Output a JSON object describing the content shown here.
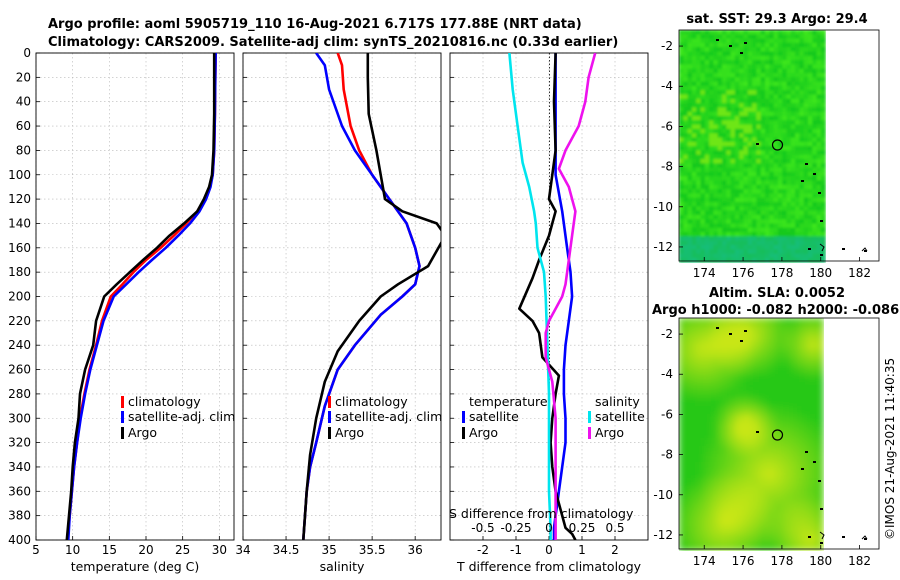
{
  "header": {
    "title_line1": "Argo profile: aoml 5905719_110 16-Aug-2021 6.717S 177.88E (NRT data)",
    "title_line2": "Climatology: CARS2009. Satellite-adj clim: synTS_20210816.nc (0.33d earlier)"
  },
  "colors": {
    "climatology": "#ff0000",
    "satellite": "#0000ff",
    "argo": "#000000",
    "sal_satellite": "#00e5ee",
    "sal_argo": "#ee11ee"
  },
  "chart_data": [
    {
      "type": "line",
      "name": "temperature-profile",
      "xlabel": "temperature (deg C)",
      "xlim": [
        5,
        32
      ],
      "xticks": [
        5,
        10,
        15,
        20,
        25,
        30
      ],
      "ylim": [
        0,
        400
      ],
      "yticks": [
        0,
        20,
        40,
        60,
        80,
        100,
        120,
        140,
        160,
        180,
        200,
        220,
        240,
        260,
        280,
        300,
        320,
        340,
        360,
        380,
        400
      ],
      "grid": true,
      "legend": [
        "climatology",
        "satellite-adj. clim",
        "Argo"
      ],
      "legend_placement": "lower-right",
      "series": [
        {
          "name": "climatology",
          "color": "#ff0000",
          "x": [
            29.5,
            29.45,
            29.4,
            29.3,
            29.1,
            28.7,
            28.0,
            27.0,
            25.5,
            23.8,
            22.0,
            20.0,
            18.3,
            16.8,
            15.2,
            14.0,
            13.2,
            12.3,
            11.6,
            11.0,
            10.6,
            10.2,
            9.9,
            9.6,
            9.3
          ],
          "depth": [
            0,
            20,
            50,
            80,
            100,
            110,
            120,
            130,
            140,
            150,
            160,
            170,
            180,
            190,
            200,
            220,
            240,
            260,
            280,
            300,
            320,
            340,
            360,
            380,
            400
          ]
        },
        {
          "name": "satellite-adj. clim",
          "color": "#0000ff",
          "x": [
            29.5,
            29.45,
            29.4,
            29.3,
            29.1,
            28.8,
            28.2,
            27.3,
            26.0,
            24.4,
            22.7,
            20.8,
            19.0,
            17.3,
            15.6,
            14.2,
            13.3,
            12.4,
            11.7,
            11.1,
            10.6,
            10.2,
            9.9,
            9.6,
            9.4
          ],
          "depth": [
            0,
            20,
            50,
            80,
            100,
            110,
            120,
            130,
            140,
            150,
            160,
            170,
            180,
            190,
            200,
            220,
            240,
            260,
            280,
            300,
            320,
            340,
            360,
            380,
            400
          ]
        },
        {
          "name": "Argo",
          "color": "#000000",
          "x": [
            29.3,
            29.3,
            29.3,
            29.2,
            29.0,
            28.6,
            27.9,
            27.0,
            25.2,
            23.2,
            21.5,
            19.6,
            17.8,
            16.0,
            14.3,
            13.2,
            12.8,
            11.7,
            11.0,
            10.8,
            10.3,
            10.0,
            9.8,
            9.5,
            9.2
          ],
          "depth": [
            0,
            20,
            50,
            80,
            100,
            110,
            120,
            130,
            140,
            150,
            160,
            170,
            180,
            190,
            200,
            220,
            240,
            260,
            280,
            300,
            320,
            340,
            360,
            380,
            400
          ]
        }
      ]
    },
    {
      "type": "line",
      "name": "salinity-profile",
      "xlabel": "salinity",
      "xlim": [
        34.0,
        36.3
      ],
      "xticks": [
        34,
        34.5,
        35,
        35.5,
        36
      ],
      "xtick_labels": [
        "34",
        "34.5",
        "35",
        "35.5",
        "36"
      ],
      "ylim": [
        0,
        400
      ],
      "grid": true,
      "legend": [
        "climatology",
        "satellite-adj. clim",
        "Argo"
      ],
      "legend_placement": "lower-right",
      "series": [
        {
          "name": "climatology",
          "color": "#ff0000",
          "x": [
            35.1,
            35.15,
            35.17,
            35.25,
            35.35,
            35.5,
            35.7,
            35.9,
            36.0,
            36.05,
            36.0,
            35.85,
            35.6,
            35.3,
            35.1,
            34.95,
            34.85,
            34.78,
            34.74,
            34.72,
            34.7
          ],
          "depth": [
            0,
            10,
            30,
            60,
            80,
            100,
            120,
            140,
            160,
            175,
            190,
            200,
            215,
            240,
            260,
            290,
            320,
            340,
            360,
            380,
            400
          ]
        },
        {
          "name": "satellite-adj. clim",
          "color": "#0000ff",
          "x": [
            34.85,
            34.95,
            35.0,
            35.15,
            35.3,
            35.5,
            35.7,
            35.9,
            36.0,
            36.05,
            36.0,
            35.85,
            35.6,
            35.3,
            35.1,
            34.95,
            34.85,
            34.78,
            34.74,
            34.72,
            34.7
          ],
          "depth": [
            0,
            10,
            30,
            60,
            80,
            100,
            120,
            140,
            160,
            175,
            190,
            200,
            215,
            240,
            260,
            290,
            320,
            340,
            360,
            380,
            400
          ]
        },
        {
          "name": "Argo",
          "color": "#000000",
          "x": [
            35.45,
            35.45,
            35.46,
            35.55,
            35.6,
            35.65,
            35.85,
            36.25,
            36.35,
            36.15,
            35.8,
            35.6,
            35.35,
            35.1,
            34.95,
            34.85,
            34.78,
            34.74,
            34.72,
            34.7
          ],
          "depth": [
            0,
            20,
            50,
            80,
            100,
            120,
            130,
            140,
            150,
            175,
            190,
            200,
            220,
            245,
            270,
            300,
            330,
            360,
            380,
            400
          ]
        }
      ]
    },
    {
      "type": "line",
      "name": "difference-profile",
      "xlabel": "T difference from climatology",
      "xlabel_top": "S difference from climatology",
      "xlim": [
        -3,
        3
      ],
      "xticks": [
        -2,
        -1,
        0,
        1,
        2
      ],
      "s_xticks_labels": [
        "-0.5",
        "-0.25",
        "0",
        "0.25",
        "0.5"
      ],
      "ylim": [
        0,
        400
      ],
      "grid": true,
      "legend_temperature": {
        "title": "temperature",
        "entries": [
          "satellite",
          "Argo"
        ]
      },
      "legend_salinity": {
        "title": "salinity",
        "entries": [
          "satellite",
          "Argo"
        ]
      },
      "series": [
        {
          "name": "temperature satellite",
          "color": "#0000ff",
          "x": [
            0.2,
            0.2,
            0.2,
            0.2,
            0.4,
            0.55,
            0.65,
            0.7,
            0.6,
            0.5,
            0.45,
            0.45,
            0.5,
            0.5,
            0.4,
            0.3,
            0.25,
            0.2,
            0.15,
            0.15
          ],
          "depth": [
            0,
            40,
            80,
            100,
            130,
            160,
            180,
            200,
            220,
            240,
            260,
            280,
            300,
            320,
            340,
            360,
            370,
            380,
            390,
            400
          ]
        },
        {
          "name": "temperature Argo",
          "color": "#000000",
          "x": [
            0.2,
            0.15,
            0.2,
            0.1,
            0.0,
            0.2,
            0.1,
            0.0,
            -0.3,
            -0.5,
            -0.9,
            -0.5,
            -0.3,
            -0.2,
            0.3,
            0.2,
            0.1,
            0.05,
            0.1,
            0.2,
            0.3,
            0.4,
            0.5,
            0.7,
            0.8
          ],
          "depth": [
            0,
            40,
            80,
            100,
            120,
            130,
            140,
            150,
            170,
            185,
            210,
            220,
            230,
            250,
            265,
            280,
            300,
            320,
            340,
            360,
            370,
            380,
            390,
            395,
            400
          ]
        },
        {
          "name": "salinity satellite",
          "color": "#00e5ee",
          "x": [
            -1.2,
            -1.1,
            -0.95,
            -0.8,
            -0.6,
            -0.45,
            -0.4,
            -0.35,
            -0.15,
            -0.1,
            -0.05,
            0.0,
            0.0,
            0.0,
            0.05,
            0.05
          ],
          "depth": [
            0,
            30,
            60,
            90,
            110,
            130,
            140,
            160,
            180,
            200,
            240,
            280,
            320,
            360,
            390,
            400
          ]
        },
        {
          "name": "salinity Argo",
          "color": "#ee11ee",
          "x": [
            1.4,
            1.2,
            1.1,
            0.9,
            0.5,
            0.3,
            0.6,
            0.8,
            0.7,
            0.6,
            0.5,
            0.4,
            0.2,
            0.0,
            -0.1,
            -0.1,
            0.1,
            0.2,
            0.2,
            0.2,
            0.2
          ],
          "depth": [
            0,
            20,
            40,
            60,
            80,
            95,
            110,
            130,
            150,
            170,
            190,
            200,
            210,
            220,
            230,
            250,
            270,
            300,
            340,
            380,
            400
          ]
        }
      ]
    },
    {
      "type": "heatmap",
      "name": "sst-map",
      "title": "sat. SST: 29.3 Argo: 29.4",
      "xticks": [
        174,
        176,
        178,
        180,
        182
      ],
      "yticks": [
        -2,
        -4,
        -6,
        -8,
        -10,
        -12
      ],
      "xlim": [
        172.7,
        183.0
      ],
      "ylim": [
        -12.7,
        -1.2
      ],
      "argo_position": {
        "lon": 177.88,
        "lat": -6.717
      }
    },
    {
      "type": "heatmap",
      "name": "sla-map",
      "title_line1": "Altim. SLA: 0.0052",
      "title_line2": "Argo h1000: -0.082 h2000: -0.086",
      "xticks": [
        174,
        176,
        178,
        180,
        182
      ],
      "yticks": [
        -2,
        -4,
        -6,
        -8,
        -10,
        -12
      ],
      "xlim": [
        172.7,
        183.0
      ],
      "ylim": [
        -12.7,
        -1.2
      ],
      "argo_position": {
        "lon": 177.88,
        "lat": -6.717
      }
    }
  ],
  "watermark": "©IMOS 21-Aug-2021 11:40:35"
}
